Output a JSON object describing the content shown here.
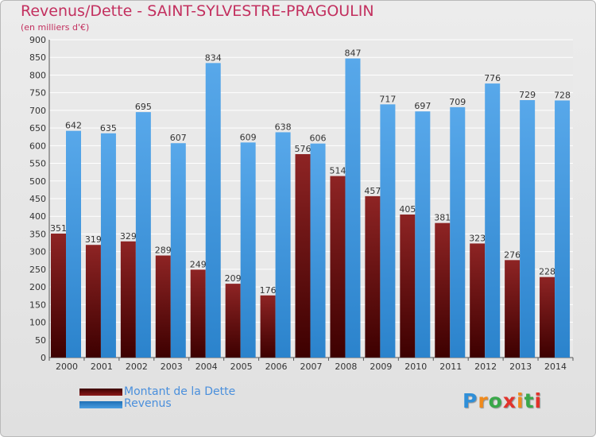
{
  "chart_data": {
    "type": "bar",
    "title": "Revenus/Dette - SAINT-SYLVESTRE-PRAGOULIN",
    "subtitle": "(en milliers d'€)",
    "categories": [
      "2000",
      "2001",
      "2002",
      "2003",
      "2004",
      "2005",
      "2006",
      "2007",
      "2008",
      "2009",
      "2010",
      "2011",
      "2012",
      "2013",
      "2014"
    ],
    "series": [
      {
        "name": "Montant de la Dette",
        "color": "#8b1a1a",
        "values": [
          351,
          319,
          329,
          289,
          249,
          209,
          176,
          576,
          514,
          457,
          405,
          381,
          323,
          276,
          228
        ]
      },
      {
        "name": "Revenus",
        "color": "#4a9de0",
        "values": [
          642,
          635,
          695,
          607,
          834,
          609,
          638,
          606,
          847,
          717,
          697,
          709,
          776,
          729,
          728
        ]
      }
    ],
    "ylim": [
      0,
      900
    ],
    "ytick_step": 50,
    "grid": true,
    "xlabel": "",
    "ylabel": ""
  },
  "logo": {
    "text": "Proxiti",
    "letters": [
      "P",
      "r",
      "o",
      "x",
      "i",
      "t",
      "i"
    ]
  }
}
